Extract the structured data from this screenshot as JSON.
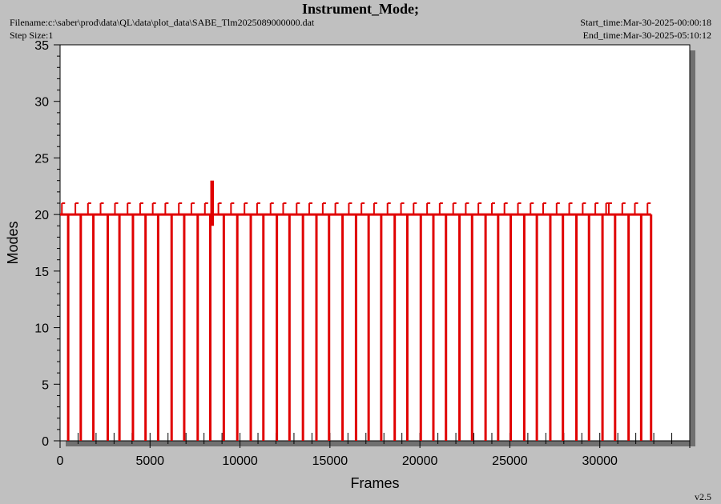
{
  "header": {
    "title": "Instrument_Mode;",
    "filename": "Filename:c:\\saber\\prod\\data\\QL\\data\\plot_data\\SABE_Tlm2025089000000.dat",
    "step_size": "Step Size:1",
    "start_time": "Start_time:Mar-30-2025-00:00:18",
    "end_time": "End_time:Mar-30-2025-05:10:12",
    "version": "v2.5"
  },
  "colors": {
    "background": "#c0c0c0",
    "plot_area": "#ffffff",
    "shadow": "#707070",
    "series": "#e00000"
  },
  "chart_data": {
    "type": "line",
    "title": "Instrument_Mode;",
    "xlabel": "Frames",
    "ylabel": "Modes",
    "xlim": [
      0,
      35000
    ],
    "ylim": [
      0,
      35
    ],
    "xticks": [
      0,
      5000,
      10000,
      15000,
      20000,
      25000,
      30000
    ],
    "xtick_labels": [
      "0",
      "5000",
      "10000",
      "15000",
      "20000",
      "25000",
      "30000"
    ],
    "yticks": [
      0,
      5,
      10,
      15,
      20,
      25,
      30,
      35
    ],
    "ytick_labels": [
      "0",
      "5",
      "10",
      "15",
      "20",
      "25",
      "30",
      "35"
    ],
    "grid": false,
    "series": [
      {
        "baseline": 20,
        "x_start": 0,
        "x_end": 32850,
        "dropouts_to_zero": [
          450,
          1150,
          1850,
          2650,
          3300,
          4050,
          4750,
          5450,
          6200,
          6900,
          7650,
          8350,
          9100,
          9850,
          10600,
          11300,
          12050,
          12750,
          13500,
          14250,
          14950,
          15700,
          16450,
          17150,
          17850,
          18600,
          19300,
          20050,
          20750,
          21450,
          22200,
          22900,
          23650,
          24350,
          25050,
          25800,
          26500,
          27250,
          27950,
          28700,
          29400,
          30150,
          30850,
          31600,
          32300,
          32850
        ],
        "blips_to_21": [
          100,
          850,
          1550,
          2250,
          3050,
          3750,
          4450,
          5150,
          5850,
          6600,
          7300,
          8050,
          8800,
          9500,
          10250,
          10950,
          11700,
          12400,
          13150,
          13850,
          14600,
          15300,
          16050,
          16750,
          17450,
          18200,
          18950,
          19650,
          20400,
          21100,
          21850,
          22550,
          23250,
          24000,
          24700,
          25450,
          26150,
          26850,
          27600,
          28300,
          29050,
          29750,
          30350,
          30500,
          31250,
          31950,
          32650
        ],
        "spike": {
          "x_from": 8350,
          "x_to": 8550,
          "value": 23
        }
      }
    ]
  }
}
